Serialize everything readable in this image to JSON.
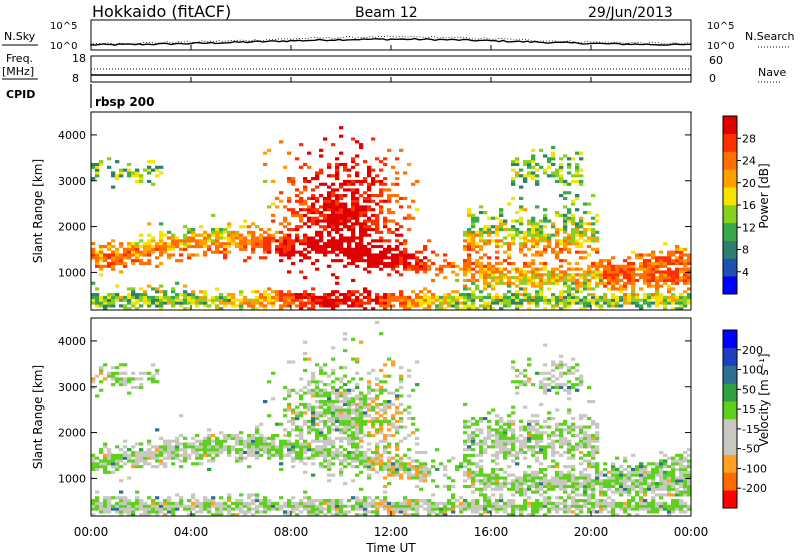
{
  "header": {
    "station": "Hokkaido (fitACF)",
    "beam": "Beam 12",
    "date": "29/Jun/2013"
  },
  "top_panels": {
    "nsky_label": "N.Sky",
    "nsky_ticks": [
      "10^5",
      "10^0"
    ],
    "nsearch_label": "N.Search",
    "nsearch_ticks": [
      "10^5",
      "10^0"
    ],
    "freq_label": "Freq.",
    "freq_unit": "[MHz]",
    "freq_ticks": [
      "18",
      "8"
    ],
    "nave_label": "Nave",
    "nave_ticks": [
      "60",
      "0"
    ],
    "cpid_label": "CPID",
    "cpid_value": "rbsp 200"
  },
  "colors": {
    "power_scale": [
      "#0000ff",
      "#2050b0",
      "#2f7f70",
      "#38a848",
      "#88d020",
      "#f5e400",
      "#ffa000",
      "#ff7000",
      "#ff3000",
      "#e00000"
    ],
    "velocity_scale": [
      "#ff0000",
      "#ff6a00",
      "#ffa020",
      "#c8c8c0",
      "#c8c8c0",
      "#60d020",
      "#30a040",
      "#2f6f8f",
      "#1f3fbf",
      "#0000ff"
    ]
  },
  "chart_data": [
    {
      "type": "heatmap",
      "name": "power",
      "ylabel": "Slant Range [km]",
      "yticks": [
        1000,
        2000,
        3000,
        4000
      ],
      "ylim": [
        180,
        4500
      ],
      "colorbar_label": "Power [dB]",
      "colorbar_ticks": [
        "4",
        "8",
        "12",
        "16",
        "20",
        "24",
        "28"
      ],
      "colorbar_range": [
        0,
        32
      ]
    },
    {
      "type": "heatmap",
      "name": "velocity",
      "ylabel": "Slant Range [km]",
      "yticks": [
        1000,
        2000,
        3000,
        4000
      ],
      "ylim": [
        180,
        4500
      ],
      "colorbar_label": "Velocity [m s⁻¹]",
      "colorbar_ticks": [
        "-200",
        "-100",
        "-50",
        "-15",
        "15",
        "50",
        "100",
        "200"
      ],
      "colorbar_range": [
        -250,
        250
      ]
    }
  ],
  "xaxis": {
    "ticks": [
      "00:00",
      "04:00",
      "08:00",
      "12:00",
      "16:00",
      "20:00",
      "00:00"
    ],
    "xlabel": "Time UT"
  }
}
